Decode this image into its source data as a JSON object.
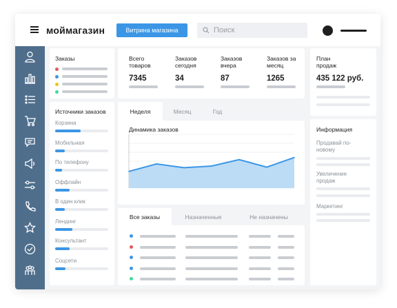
{
  "header": {
    "logo": "моймагазин",
    "store_button": "Витрина магазина",
    "search_placeholder": "Поиск"
  },
  "sidebar": {
    "icons": [
      "user-icon",
      "bar-chart-icon",
      "list-icon",
      "cart-icon",
      "chat-icon",
      "megaphone-icon",
      "sliders-icon",
      "phone-icon",
      "star-icon",
      "check-circle-icon",
      "people-icon"
    ]
  },
  "orders_card": {
    "title": "Заказы",
    "dot_colors": [
      "#e05a5a",
      "#3b96e6",
      "#f0c419",
      "#3ddc97"
    ]
  },
  "stats": [
    {
      "title": "Всего товаров",
      "value": "7345"
    },
    {
      "title": "Заказов сегодня",
      "value": "34"
    },
    {
      "title": "Заказов вчера",
      "value": "87"
    },
    {
      "title": "Заказов за месяц",
      "value": "1265"
    }
  ],
  "plan": {
    "title": "План продаж",
    "value": "435 122 руб."
  },
  "sources": {
    "title": "Источники заказов",
    "items": [
      {
        "label": "Корзина",
        "fill": 0.48
      },
      {
        "label": "Мобильная",
        "fill": 0.18
      },
      {
        "label": "По телефону",
        "fill": 0.13
      },
      {
        "label": "Оффлайн",
        "fill": 0.27
      },
      {
        "label": "В один клик",
        "fill": 0.18
      },
      {
        "label": "Лендинг",
        "fill": 0.33
      },
      {
        "label": "Консультант",
        "fill": 0.27
      },
      {
        "label": "Соцсети",
        "fill": 0.19
      }
    ]
  },
  "period_tabs": [
    "Неделя",
    "Месяц",
    "Год"
  ],
  "chart_data": {
    "type": "area",
    "title": "Динамика заказов",
    "x": [
      1,
      2,
      3,
      4,
      5,
      6,
      7
    ],
    "values": [
      31,
      45,
      38,
      41,
      53,
      39,
      57
    ],
    "ylim": [
      0,
      100
    ],
    "grid": true,
    "color": "#3b96e6"
  },
  "info": {
    "title": "Информация",
    "items": [
      "Продавай по-новому",
      "Увеличение продаж",
      "Маркетинг"
    ]
  },
  "orders_tabs": [
    "Все заказы",
    "Назначенные",
    "Не назначены"
  ],
  "order_row_colors": [
    "#3b96e6",
    "#e05a5a",
    "#3b96e6",
    "#3b96e6",
    "#3ddc97"
  ]
}
